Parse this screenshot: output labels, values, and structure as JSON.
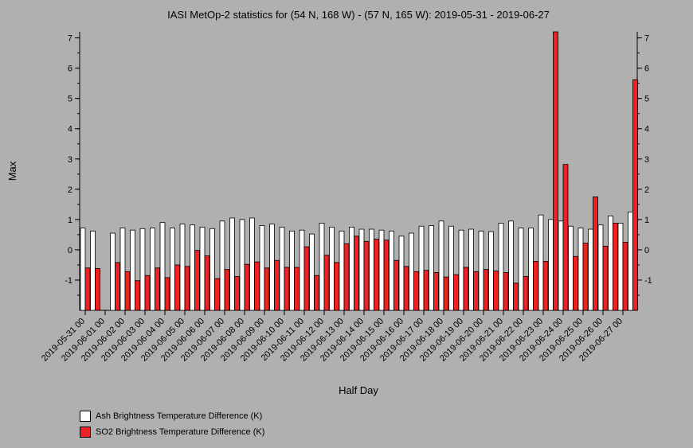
{
  "chart_data": {
    "type": "bar",
    "title": "IASI MetOp-2 statistics for (54 N, 168 W) - (57 N, 165 W): 2019-05-31 - 2019-06-27",
    "xlabel": "Half Day",
    "ylabel": "Max",
    "ylim": [
      -2,
      7.2
    ],
    "yticks": [
      -1,
      0,
      1,
      2,
      3,
      4,
      5,
      6,
      7
    ],
    "grid": false,
    "legend_position": "bottom-left",
    "x_tick_labels": [
      "2019-05-31 00",
      "2019-06-01 00",
      "2019-06-02 00",
      "2019-06-03 00",
      "2019-06-04 00",
      "2019-06-05 00",
      "2019-06-06 00",
      "2019-06-07 00",
      "2019-06-08 00",
      "2019-06-09 00",
      "2019-06-10 00",
      "2019-06-11 00",
      "2019-06-12 00",
      "2019-06-13 00",
      "2019-06-14 00",
      "2019-06-15 00",
      "2019-06-16 00",
      "2019-06-17 00",
      "2019-06-18 00",
      "2019-06-19 00",
      "2019-06-20 00",
      "2019-06-21 00",
      "2019-06-22 00",
      "2019-06-23 00",
      "2019-06-24 00",
      "2019-06-25 00",
      "2019-06-26 00",
      "2019-06-27 00"
    ],
    "series": [
      {
        "name": "Ash Brightness Temperature Difference (K)",
        "color": "#ffffff",
        "values": [
          0.72,
          0.62,
          null,
          0.55,
          0.72,
          0.65,
          0.7,
          0.72,
          0.9,
          0.72,
          0.85,
          0.82,
          0.75,
          0.7,
          0.95,
          1.05,
          1.0,
          1.05,
          0.8,
          0.85,
          0.75,
          0.62,
          0.65,
          0.52,
          0.88,
          0.75,
          0.62,
          0.75,
          0.68,
          0.68,
          0.65,
          0.62,
          0.45,
          0.55,
          0.78,
          0.8,
          0.95,
          0.78,
          0.65,
          0.68,
          0.62,
          0.6,
          0.88,
          0.95,
          0.72,
          0.72,
          1.15,
          1.0,
          0.95,
          0.78,
          0.72,
          0.68,
          0.82,
          1.12,
          0.88,
          1.25
        ]
      },
      {
        "name": "SO2 Brightness Temperature Difference (K)",
        "color": "#ee2222",
        "values": [
          -0.6,
          -0.62,
          null,
          -0.42,
          -0.72,
          -1.02,
          -0.85,
          -0.6,
          -0.92,
          -0.5,
          -0.55,
          -0.02,
          -0.2,
          -0.95,
          -0.65,
          -0.88,
          -0.48,
          -0.4,
          -0.6,
          -0.35,
          -0.58,
          -0.58,
          0.1,
          -0.85,
          -0.18,
          -0.42,
          0.2,
          0.45,
          0.28,
          0.35,
          0.32,
          -0.35,
          -0.55,
          -0.72,
          -0.68,
          -0.75,
          -0.9,
          -0.82,
          -0.58,
          -0.72,
          -0.65,
          -0.7,
          -0.75,
          -1.1,
          -0.88,
          -0.38,
          -0.38,
          7.2,
          2.82,
          -0.22,
          0.22,
          1.75,
          0.12,
          0.88,
          0.25,
          5.62
        ]
      }
    ]
  }
}
